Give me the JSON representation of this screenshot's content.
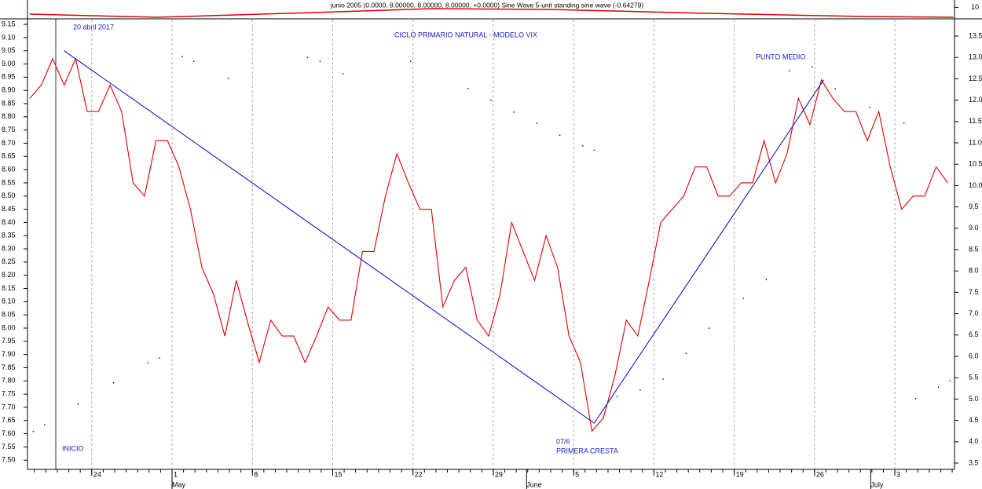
{
  "chart_data": {
    "type": "line",
    "title": "CICLO PRIMARIO NATURAL - MODELO VIX",
    "annotations": [
      "20 abril 2017",
      "PUNTO MEDIO",
      "INICIO",
      "07/6",
      "PRIMERA CRESTA"
    ],
    "x": [
      0,
      1,
      2,
      3,
      4,
      5,
      6,
      7,
      8,
      9,
      10,
      11,
      12,
      13,
      14,
      15,
      16,
      17,
      18,
      19,
      20,
      21,
      22,
      23,
      24,
      25,
      26,
      27,
      28,
      29,
      30,
      31,
      32,
      33,
      34,
      35,
      36,
      37,
      38,
      39,
      40,
      41,
      42,
      43,
      44,
      45,
      46,
      47,
      48,
      49,
      50,
      51,
      52,
      53,
      54,
      55,
      56,
      57,
      58,
      59,
      60,
      61,
      62,
      63,
      64,
      65,
      66,
      67,
      68,
      69,
      70,
      71,
      72,
      73,
      74,
      75,
      76,
      77,
      78,
      79,
      80
    ],
    "series": [
      {
        "name": "VIX",
        "color": "#e00000",
        "values": [
          8.87,
          8.92,
          9.02,
          8.92,
          9.02,
          8.82,
          8.82,
          8.92,
          8.82,
          8.55,
          8.5,
          8.71,
          8.71,
          8.61,
          8.45,
          8.23,
          8.13,
          7.97,
          8.18,
          8.02,
          7.87,
          8.03,
          7.97,
          7.97,
          7.87,
          7.97,
          8.08,
          8.03,
          8.03,
          8.29,
          8.29,
          8.5,
          8.66,
          8.55,
          8.45,
          8.45,
          8.08,
          8.18,
          8.23,
          8.03,
          7.97,
          8.13,
          8.4,
          8.29,
          8.18,
          8.35,
          8.23,
          7.97,
          7.87,
          7.61,
          7.66,
          7.82,
          8.03,
          7.97,
          8.18,
          8.4,
          8.45,
          8.5,
          8.61,
          8.61,
          8.5,
          8.5,
          8.55,
          8.55,
          8.71,
          8.55,
          8.66,
          8.87,
          8.77,
          8.94,
          8.87,
          8.82,
          8.82,
          8.71,
          8.82,
          8.61,
          8.45,
          8.5,
          8.5,
          8.61,
          8.55
        ]
      }
    ],
    "trendline": {
      "color": "#0000cc",
      "x": [
        3,
        49.2,
        69.2
      ],
      "values": [
        9.05,
        7.64,
        8.94
      ]
    },
    "sine_dots": {
      "axis": "y2",
      "color": "#000000",
      "x": [
        0.3,
        1.3,
        4.2,
        7.3,
        10.3,
        11.3,
        13.3,
        14.3,
        17.3,
        24.2,
        25.3,
        27.3,
        33.2,
        38.2,
        40.2,
        42.2,
        44.2,
        46.2,
        48.2,
        49.2,
        51.2,
        53.2,
        55.2,
        57.2,
        59.2,
        62.2,
        64.2,
        66.2,
        68.2,
        70.2,
        73.2,
        76.2,
        77.2,
        79.2,
        80.2
      ],
      "values": [
        4.24,
        4.4,
        4.88,
        5.38,
        5.85,
        5.96,
        13.02,
        12.91,
        12.51,
        13.0,
        12.91,
        12.62,
        12.91,
        12.27,
        12.0,
        11.72,
        11.46,
        11.18,
        10.93,
        10.83,
        5.06,
        5.21,
        5.47,
        6.07,
        6.66,
        7.36,
        7.8,
        12.69,
        12.78,
        12.27,
        11.83,
        11.46,
        5.01,
        5.28,
        5.43
      ]
    },
    "indicator": {
      "title": "junio 2005 (0.0000, 8.00000, 8.00000, 8.00000, +0.0000) Sine Wave 5-unit standing sine wave (-0.64279)",
      "color": "#e00000",
      "x": [
        0,
        11.1,
        24.8,
        35.1,
        45.3,
        59.0,
        72.7,
        80.5
      ],
      "values": [
        8.82,
        8.27,
        9.09,
        9.78,
        9.64,
        8.96,
        8.41,
        8.27
      ],
      "ylim": [
        8,
        10.6
      ],
      "yticks": [
        10
      ]
    },
    "xlim": [
      -0.2,
      80.6
    ],
    "xticks": [
      {
        "value": 5.4,
        "label": "24"
      },
      {
        "value": 12.4,
        "label": "1"
      },
      {
        "value": 19.4,
        "label": "8"
      },
      {
        "value": 26.4,
        "label": "15"
      },
      {
        "value": 33.4,
        "label": "22"
      },
      {
        "value": 40.4,
        "label": "29"
      },
      {
        "value": 47.4,
        "label": "5"
      },
      {
        "value": 54.4,
        "label": "12"
      },
      {
        "value": 61.4,
        "label": "19"
      },
      {
        "value": 68.4,
        "label": "26"
      },
      {
        "value": 75.4,
        "label": "3"
      }
    ],
    "month_ticks": [
      {
        "value": 12.4,
        "label": "May"
      },
      {
        "value": 43.3,
        "label": "June"
      },
      {
        "value": 73.3,
        "label": "July"
      }
    ],
    "ylim": [
      7.465,
      9.168
    ],
    "yticks": [
      {
        "value": 7.5,
        "label": "7.50"
      },
      7.55,
      {
        "value": 7.6,
        "label": "7.60"
      },
      7.65,
      {
        "value": 7.7,
        "label": "7.70"
      },
      7.75,
      {
        "value": 7.8,
        "label": "7.80"
      },
      7.85,
      {
        "value": 7.9,
        "label": "7.90"
      },
      7.95,
      {
        "value": 8,
        "label": "8.00"
      },
      8.05,
      {
        "value": 8.1,
        "label": "8.10"
      },
      8.15,
      {
        "value": 8.2,
        "label": "8.20"
      },
      8.25,
      {
        "value": 8.3,
        "label": "8.30"
      },
      8.35,
      {
        "value": 8.4,
        "label": "8.40"
      },
      8.45,
      {
        "value": 8.5,
        "label": "8.50"
      },
      8.55,
      {
        "value": 8.6,
        "label": "8.60"
      },
      8.65,
      {
        "value": 8.7,
        "label": "8.70"
      },
      8.75,
      {
        "value": 8.8,
        "label": "8.80"
      },
      8.85,
      {
        "value": 8.9,
        "label": "8.90"
      },
      8.95,
      {
        "value": 9,
        "label": "9.00"
      },
      9.05,
      {
        "value": 9.1,
        "label": "9.10"
      },
      9.15
    ],
    "y2lim": [
      3.353,
      13.886
    ],
    "y2ticks": [
      3.5,
      {
        "value": 4,
        "label": "4.0"
      },
      4.5,
      {
        "value": 5,
        "label": "5.0"
      },
      5.5,
      {
        "value": 6,
        "label": "6.0"
      },
      6.5,
      {
        "value": 7,
        "label": "7.0"
      },
      7.5,
      {
        "value": 8,
        "label": "8.0"
      },
      8.5,
      {
        "value": 9,
        "label": "9.0"
      },
      9.5,
      {
        "value": 10,
        "label": "10.0"
      },
      10.5,
      {
        "value": 11,
        "label": "11.0"
      },
      11.5,
      {
        "value": 12,
        "label": "12.0"
      },
      12.5,
      {
        "value": 13,
        "label": "13.0"
      },
      13.5
    ],
    "grid": true
  }
}
